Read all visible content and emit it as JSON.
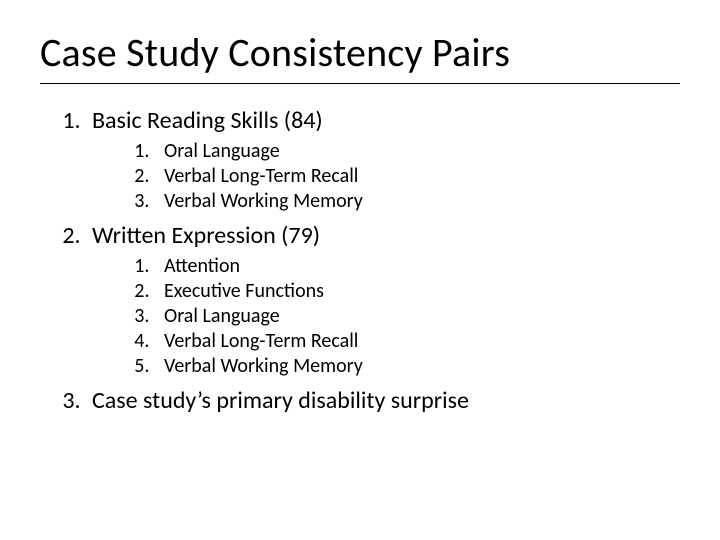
{
  "title": "Case Study Consistency Pairs",
  "title_fontsize": 40,
  "body_fontsize_l1": 24,
  "body_fontsize_l2": 20,
  "text_color": "#000000",
  "background_color": "#ffffff",
  "rule_color": "#000000",
  "items": [
    {
      "label": "Basic Reading Skills (84)",
      "children": [
        {
          "label": "Oral Language"
        },
        {
          "label": "Verbal Long-Term Recall"
        },
        {
          "label": "Verbal Working Memory"
        }
      ]
    },
    {
      "label": "Written Expression (79)",
      "children": [
        {
          "label": "Attention"
        },
        {
          "label": "Executive Functions"
        },
        {
          "label": "Oral Language"
        },
        {
          "label": "Verbal Long-Term Recall"
        },
        {
          "label": "Verbal Working Memory"
        }
      ]
    },
    {
      "label": "Case study’s primary disability surprise",
      "children": []
    }
  ]
}
